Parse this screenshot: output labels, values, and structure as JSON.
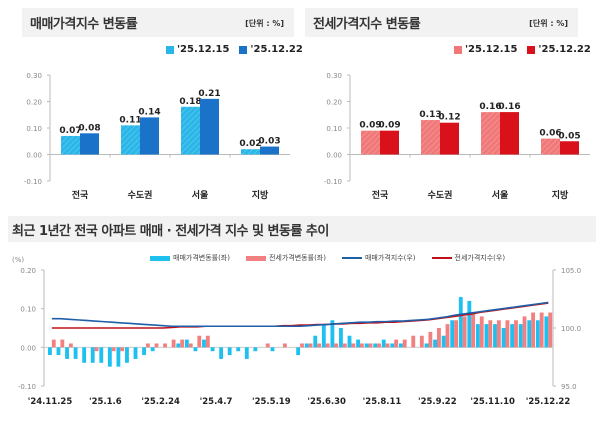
{
  "panels": {
    "sale": {
      "title": "매매가격지수 변동률",
      "unit": "[단위 : %]",
      "legend": [
        "'25.12.15",
        "'25.12.22"
      ],
      "colors": [
        "#29b6e8",
        "#1a73c8"
      ]
    },
    "jeonse": {
      "title": "전세가격지수 변동률",
      "unit": "[단위 : %]",
      "legend": [
        "'25.12.15",
        "'25.12.22"
      ],
      "colors": [
        "#f07878",
        "#d8111b"
      ]
    },
    "trend": {
      "title": "최근 1년간 전국 아파트 매매 · 전세가격 지수 및 변동률 추이",
      "left_unit": "(%)",
      "legend": [
        "매매가격변동률(좌)",
        "전세가격변동률(좌)",
        "매매가격지수(우)",
        "전세가격지수(우)"
      ],
      "colors": [
        "#1ec0f0",
        "#f28080",
        "#1f5fa8",
        "#c0101a"
      ]
    }
  },
  "chart_data": [
    {
      "type": "bar",
      "title": "매매가격지수 변동률",
      "categories": [
        "전국",
        "수도권",
        "서울",
        "지방"
      ],
      "series": [
        {
          "name": "'25.12.15",
          "values": [
            0.07,
            0.11,
            0.18,
            0.02
          ]
        },
        {
          "name": "'25.12.22",
          "values": [
            0.08,
            0.14,
            0.21,
            0.03
          ]
        }
      ],
      "yticks": [
        "0.30",
        "0.20",
        "0.10",
        "0.00",
        "-0.10"
      ],
      "ylim": [
        -0.1,
        0.3
      ],
      "unit": "%",
      "legend": "top-right"
    },
    {
      "type": "bar",
      "title": "전세가격지수 변동률",
      "categories": [
        "전국",
        "수도권",
        "서울",
        "지방"
      ],
      "series": [
        {
          "name": "'25.12.15",
          "values": [
            0.09,
            0.13,
            0.16,
            0.06
          ]
        },
        {
          "name": "'25.12.22",
          "values": [
            0.09,
            0.12,
            0.16,
            0.05
          ]
        }
      ],
      "yticks": [
        "0.30",
        "0.20",
        "0.10",
        "0.00",
        "-0.10"
      ],
      "ylim": [
        -0.1,
        0.3
      ],
      "unit": "%",
      "legend": "top-right"
    },
    {
      "type": "bar+line",
      "title": "최근 1년간 전국 아파트 매매 · 전세가격 지수 및 변동률 추이",
      "xticks": [
        "'24.11.25",
        "'25.1.6",
        "'25.2.24",
        "'25.4.7",
        "'25.5.19",
        "'25.6.30",
        "'25.8.11",
        "'25.9.22",
        "'25.11.10",
        "'25.12.22"
      ],
      "yticks_left": [
        "0.20",
        "0.10",
        "0.00",
        "-0.10"
      ],
      "ylim_left": [
        -0.1,
        0.2
      ],
      "yticks_right": [
        "105.0",
        "100.0",
        "95.0"
      ],
      "ylim_right": [
        95.0,
        105.0
      ],
      "series": [
        {
          "name": "매매가격변동률(좌)",
          "axis": "left",
          "kind": "bar",
          "values": [
            -0.02,
            -0.02,
            -0.03,
            -0.03,
            -0.04,
            -0.04,
            -0.04,
            -0.05,
            -0.05,
            -0.04,
            -0.03,
            -0.02,
            -0.01,
            0.0,
            0.0,
            0.01,
            0.02,
            -0.01,
            0.02,
            -0.01,
            -0.03,
            -0.02,
            -0.01,
            -0.03,
            -0.01,
            0.0,
            -0.01,
            0.0,
            0.0,
            -0.02,
            0.01,
            0.03,
            0.06,
            0.07,
            0.05,
            0.03,
            0.02,
            0.01,
            0.01,
            0.02,
            0.01,
            0.01,
            0.0,
            0.0,
            0.01,
            0.02,
            0.03,
            0.07,
            0.13,
            0.12,
            0.06,
            0.06,
            0.06,
            0.05,
            0.06,
            0.06,
            0.07,
            0.07,
            0.08
          ]
        },
        {
          "name": "전세가격변동률(좌)",
          "axis": "left",
          "kind": "bar",
          "values": [
            0.02,
            0.02,
            0.01,
            0.0,
            0.0,
            -0.01,
            0.0,
            -0.01,
            -0.01,
            0.0,
            0.0,
            0.01,
            0.01,
            0.01,
            0.02,
            0.02,
            0.01,
            0.03,
            0.03,
            0.0,
            0.0,
            0.0,
            0.0,
            0.0,
            0.0,
            0.01,
            0.0,
            0.01,
            0.0,
            0.01,
            0.01,
            0.01,
            0.01,
            0.01,
            0.01,
            0.01,
            0.01,
            0.01,
            0.01,
            0.01,
            0.02,
            0.02,
            0.03,
            0.03,
            0.04,
            0.05,
            0.06,
            0.07,
            0.08,
            0.09,
            0.08,
            0.07,
            0.07,
            0.07,
            0.07,
            0.08,
            0.09,
            0.09,
            0.09
          ]
        },
        {
          "name": "매매가격지수(우)",
          "axis": "right",
          "kind": "line",
          "values": [
            100.8,
            100.8,
            100.75,
            100.7,
            100.65,
            100.6,
            100.55,
            100.5,
            100.45,
            100.4,
            100.35,
            100.3,
            100.25,
            100.2,
            100.15,
            100.15,
            100.15,
            100.15,
            100.15,
            100.15,
            100.15,
            100.15,
            100.15,
            100.15,
            100.15,
            100.15,
            100.15,
            100.15,
            100.15,
            100.15,
            100.2,
            100.25,
            100.3,
            100.35,
            100.4,
            100.45,
            100.5,
            100.5,
            100.55,
            100.55,
            100.6,
            100.6,
            100.65,
            100.7,
            100.75,
            100.85,
            100.95,
            101.1,
            101.2,
            101.3,
            101.4,
            101.5,
            101.6,
            101.7,
            101.8,
            101.9,
            102.0,
            102.1,
            102.2
          ]
        },
        {
          "name": "전세가격지수(우)",
          "axis": "right",
          "kind": "line",
          "values": [
            100.0,
            100.0,
            100.0,
            100.0,
            100.0,
            100.0,
            100.0,
            100.0,
            100.0,
            100.0,
            100.0,
            100.0,
            100.0,
            100.0,
            100.05,
            100.1,
            100.1,
            100.1,
            100.15,
            100.15,
            100.15,
            100.15,
            100.15,
            100.15,
            100.15,
            100.15,
            100.15,
            100.2,
            100.2,
            100.25,
            100.25,
            100.3,
            100.3,
            100.35,
            100.35,
            100.4,
            100.4,
            100.45,
            100.45,
            100.5,
            100.5,
            100.55,
            100.6,
            100.65,
            100.7,
            100.8,
            100.9,
            101.0,
            101.1,
            101.2,
            101.35,
            101.45,
            101.55,
            101.65,
            101.75,
            101.85,
            101.95,
            102.05,
            102.15
          ]
        }
      ],
      "legend": "top-center"
    }
  ]
}
